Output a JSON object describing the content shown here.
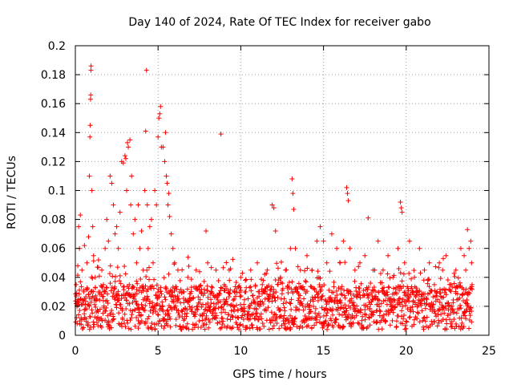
{
  "chart_data": {
    "type": "scatter",
    "title": "Day 140 of 2024, Rate Of TEC Index for receiver gabo",
    "xlabel": "GPS time / hours",
    "ylabel": "ROTI / TECUs",
    "xlim": [
      0,
      25
    ],
    "ylim": [
      0,
      0.2
    ],
    "xticks": [
      0,
      5,
      10,
      15,
      20,
      25
    ],
    "yticks": [
      0,
      0.02,
      0.04,
      0.06,
      0.08,
      0.1,
      0.12,
      0.14,
      0.16,
      0.18,
      0.2
    ],
    "xtick_labels": [
      "0",
      "5",
      "10",
      "15",
      "20",
      "25"
    ],
    "ytick_labels": [
      "0",
      "0.02",
      "0.04",
      "0.06",
      "0.08",
      "0.1",
      "0.12",
      "0.14",
      "0.16",
      "0.18",
      "0.2"
    ],
    "grid": true,
    "marker": "+",
    "color": "#ff0000",
    "series": [
      {
        "name": "ROTI",
        "points": [
          [
            0.05,
            0.035
          ],
          [
            0.1,
            0.02
          ],
          [
            0.15,
            0.048
          ],
          [
            0.2,
            0.075
          ],
          [
            0.25,
            0.06
          ],
          [
            0.3,
            0.083
          ],
          [
            0.35,
            0.012
          ],
          [
            0.4,
            0.045
          ],
          [
            0.5,
            0.03
          ],
          [
            0.55,
            0.062
          ],
          [
            0.6,
            0.018
          ],
          [
            0.7,
            0.05
          ],
          [
            0.8,
            0.068
          ],
          [
            0.85,
            0.11
          ],
          [
            0.88,
            0.137
          ],
          [
            0.9,
            0.145
          ],
          [
            0.92,
            0.163
          ],
          [
            0.93,
            0.166
          ],
          [
            0.94,
            0.183
          ],
          [
            0.95,
            0.186
          ],
          [
            1.0,
            0.1
          ],
          [
            1.05,
            0.075
          ],
          [
            1.1,
            0.055
          ],
          [
            1.2,
            0.04
          ],
          [
            1.3,
            0.025
          ],
          [
            1.4,
            0.052
          ],
          [
            1.5,
            0.018
          ],
          [
            1.6,
            0.045
          ],
          [
            1.7,
            0.035
          ],
          [
            1.8,
            0.06
          ],
          [
            1.9,
            0.08
          ],
          [
            2.0,
            0.065
          ],
          [
            2.1,
            0.11
          ],
          [
            2.2,
            0.105
          ],
          [
            2.3,
            0.09
          ],
          [
            2.4,
            0.07
          ],
          [
            2.5,
            0.075
          ],
          [
            2.6,
            0.06
          ],
          [
            2.7,
            0.085
          ],
          [
            2.8,
            0.12
          ],
          [
            2.9,
            0.119
          ],
          [
            3.0,
            0.124
          ],
          [
            3.05,
            0.122
          ],
          [
            3.1,
            0.1
          ],
          [
            3.15,
            0.133
          ],
          [
            3.2,
            0.13
          ],
          [
            3.3,
            0.135
          ],
          [
            3.35,
            0.09
          ],
          [
            3.4,
            0.11
          ],
          [
            3.5,
            0.07
          ],
          [
            3.6,
            0.08
          ],
          [
            3.7,
            0.05
          ],
          [
            3.8,
            0.09
          ],
          [
            3.9,
            0.06
          ],
          [
            4.0,
            0.072
          ],
          [
            4.1,
            0.045
          ],
          [
            4.2,
            0.1
          ],
          [
            4.25,
            0.141
          ],
          [
            4.3,
            0.183
          ],
          [
            4.35,
            0.09
          ],
          [
            4.4,
            0.06
          ],
          [
            4.5,
            0.075
          ],
          [
            4.6,
            0.08
          ],
          [
            4.7,
            0.05
          ],
          [
            4.8,
            0.1
          ],
          [
            4.9,
            0.09
          ],
          [
            5.0,
            0.137
          ],
          [
            5.05,
            0.15
          ],
          [
            5.1,
            0.153
          ],
          [
            5.15,
            0.158
          ],
          [
            5.2,
            0.13
          ],
          [
            5.3,
            0.13
          ],
          [
            5.4,
            0.12
          ],
          [
            5.45,
            0.14
          ],
          [
            5.5,
            0.11
          ],
          [
            5.55,
            0.105
          ],
          [
            5.6,
            0.09
          ],
          [
            5.65,
            0.098
          ],
          [
            5.7,
            0.082
          ],
          [
            5.8,
            0.07
          ],
          [
            5.9,
            0.06
          ],
          [
            6.0,
            0.05
          ],
          [
            6.2,
            0.045
          ],
          [
            6.5,
            0.03
          ],
          [
            6.8,
            0.04
          ],
          [
            7.0,
            0.025
          ],
          [
            7.3,
            0.045
          ],
          [
            7.6,
            0.03
          ],
          [
            7.9,
            0.072
          ],
          [
            8.0,
            0.05
          ],
          [
            8.2,
            0.03
          ],
          [
            8.5,
            0.045
          ],
          [
            8.8,
            0.139
          ],
          [
            9.0,
            0.035
          ],
          [
            9.3,
            0.045
          ],
          [
            9.6,
            0.025
          ],
          [
            10.0,
            0.04
          ],
          [
            10.3,
            0.03
          ],
          [
            10.6,
            0.045
          ],
          [
            11.0,
            0.05
          ],
          [
            11.3,
            0.035
          ],
          [
            11.6,
            0.045
          ],
          [
            11.9,
            0.09
          ],
          [
            12.0,
            0.088
          ],
          [
            12.1,
            0.072
          ],
          [
            12.4,
            0.04
          ],
          [
            12.7,
            0.045
          ],
          [
            13.0,
            0.06
          ],
          [
            13.1,
            0.108
          ],
          [
            13.15,
            0.098
          ],
          [
            13.2,
            0.087
          ],
          [
            13.3,
            0.06
          ],
          [
            13.6,
            0.045
          ],
          [
            14.0,
            0.055
          ],
          [
            14.3,
            0.045
          ],
          [
            14.6,
            0.065
          ],
          [
            14.8,
            0.075
          ],
          [
            15.0,
            0.065
          ],
          [
            15.2,
            0.05
          ],
          [
            15.5,
            0.07
          ],
          [
            15.8,
            0.06
          ],
          [
            16.0,
            0.05
          ],
          [
            16.2,
            0.065
          ],
          [
            16.4,
            0.102
          ],
          [
            16.45,
            0.098
          ],
          [
            16.5,
            0.093
          ],
          [
            16.6,
            0.06
          ],
          [
            16.9,
            0.045
          ],
          [
            17.2,
            0.05
          ],
          [
            17.5,
            0.055
          ],
          [
            17.7,
            0.081
          ],
          [
            18.0,
            0.045
          ],
          [
            18.3,
            0.065
          ],
          [
            18.6,
            0.045
          ],
          [
            18.9,
            0.055
          ],
          [
            19.2,
            0.04
          ],
          [
            19.5,
            0.06
          ],
          [
            19.65,
            0.092
          ],
          [
            19.7,
            0.088
          ],
          [
            19.75,
            0.085
          ],
          [
            19.9,
            0.05
          ],
          [
            20.2,
            0.065
          ],
          [
            20.5,
            0.04
          ],
          [
            20.8,
            0.06
          ],
          [
            21.1,
            0.045
          ],
          [
            21.4,
            0.05
          ],
          [
            21.7,
            0.035
          ],
          [
            22.0,
            0.05
          ],
          [
            22.2,
            0.045
          ],
          [
            22.4,
            0.055
          ],
          [
            22.7,
            0.035
          ],
          [
            23.0,
            0.045
          ],
          [
            23.3,
            0.06
          ],
          [
            23.5,
            0.055
          ],
          [
            23.6,
            0.045
          ],
          [
            23.7,
            0.073
          ],
          [
            23.8,
            0.06
          ],
          [
            23.9,
            0.065
          ],
          [
            23.95,
            0.05
          ],
          [
            23.98,
            0.035
          ]
        ]
      }
    ],
    "dense_band": {
      "description": "continuous dense field of markers across 0-24 h",
      "x_range": [
        0,
        24
      ],
      "y_floor": 0.004,
      "y_typical": 0.03
    }
  }
}
